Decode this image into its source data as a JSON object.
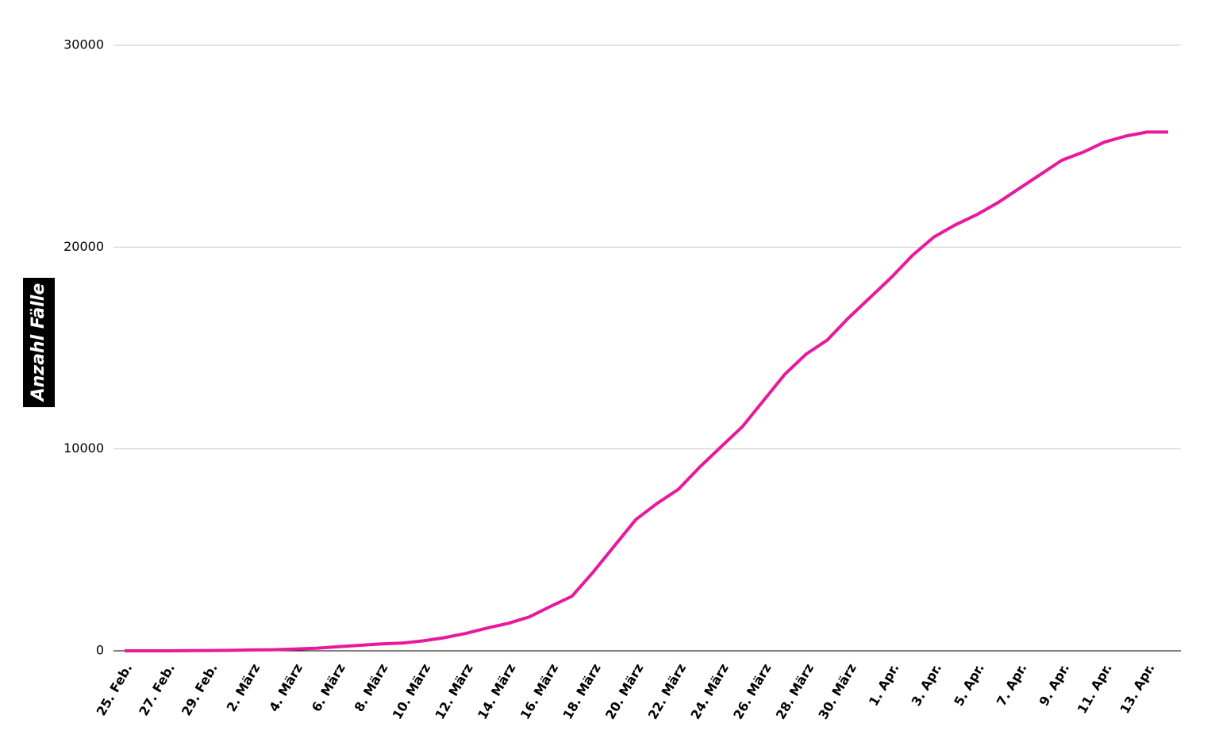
{
  "chart_data": {
    "type": "line",
    "ylabel": "Anzahl Fälle",
    "categories": [
      "25. Feb.",
      null,
      "27. Feb.",
      null,
      "29. Feb.",
      null,
      "2. März",
      null,
      "4. März",
      null,
      "6. März",
      null,
      "8. März",
      null,
      "10. März",
      null,
      "12. März",
      null,
      "14. März",
      null,
      "16. März",
      null,
      "18. März",
      null,
      "20. März",
      null,
      "22. März",
      null,
      "24. März",
      null,
      "26. März",
      null,
      "28. März",
      null,
      "30. März",
      null,
      "1. Apr.",
      null,
      "3. Apr.",
      null,
      "5. Apr.",
      null,
      "7. Apr.",
      null,
      "9. Apr.",
      null,
      "11. Apr.",
      null,
      "13. Apr.",
      null
    ],
    "values": [
      0,
      1,
      1,
      8,
      15,
      24,
      42,
      56,
      90,
      130,
      200,
      270,
      340,
      380,
      490,
      650,
      858,
      1125,
      1359,
      1680,
      2200,
      2700,
      3900,
      5200,
      6500,
      7300,
      8000,
      9100,
      10100,
      11100,
      12400,
      13700,
      14700,
      15400,
      16500,
      17500,
      18500,
      19600,
      20500,
      21100,
      21600,
      22200,
      22900,
      23600,
      24300,
      24700,
      25200,
      25500,
      25700,
      25700
    ],
    "color": "#e8199c",
    "ylim": [
      0,
      30000
    ],
    "yticks": [
      0,
      10000,
      20000,
      30000
    ],
    "grid": true
  }
}
